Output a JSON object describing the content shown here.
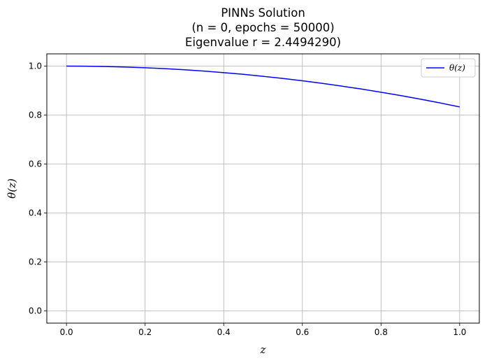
{
  "chart_data": {
    "type": "line",
    "title_lines": [
      "PINNs Solution",
      "(n = 0, epochs = 50000)",
      "Eigenvalue r = 2.4494290)"
    ],
    "xlabel": "z",
    "ylabel": "θ(z)",
    "xlim": [
      -0.05,
      1.05
    ],
    "ylim": [
      -0.05,
      1.05
    ],
    "xticks": [
      0.0,
      0.2,
      0.4,
      0.6,
      0.8,
      1.0
    ],
    "xtick_labels": [
      "0.0",
      "0.2",
      "0.4",
      "0.6",
      "0.8",
      "1.0"
    ],
    "yticks": [
      0.0,
      0.2,
      0.4,
      0.6,
      0.8,
      1.0
    ],
    "ytick_labels": [
      "0.0",
      "0.2",
      "0.4",
      "0.6",
      "0.8",
      "1.0"
    ],
    "grid": true,
    "legend": {
      "position": "top-right",
      "entries": [
        "θ(z)"
      ]
    },
    "series": [
      {
        "name": "θ(z)",
        "color": "#0000ff",
        "x": [
          0.0,
          0.05,
          0.1,
          0.15,
          0.2,
          0.25,
          0.3,
          0.35,
          0.4,
          0.45,
          0.5,
          0.55,
          0.6,
          0.65,
          0.7,
          0.75,
          0.8,
          0.85,
          0.9,
          0.95,
          1.0
        ],
        "y": [
          1.0,
          0.9996,
          0.9983,
          0.9962,
          0.9933,
          0.9896,
          0.985,
          0.9796,
          0.9733,
          0.9663,
          0.9583,
          0.9496,
          0.94,
          0.9296,
          0.9183,
          0.9063,
          0.8933,
          0.8796,
          0.865,
          0.8496,
          0.8333
        ]
      }
    ]
  }
}
